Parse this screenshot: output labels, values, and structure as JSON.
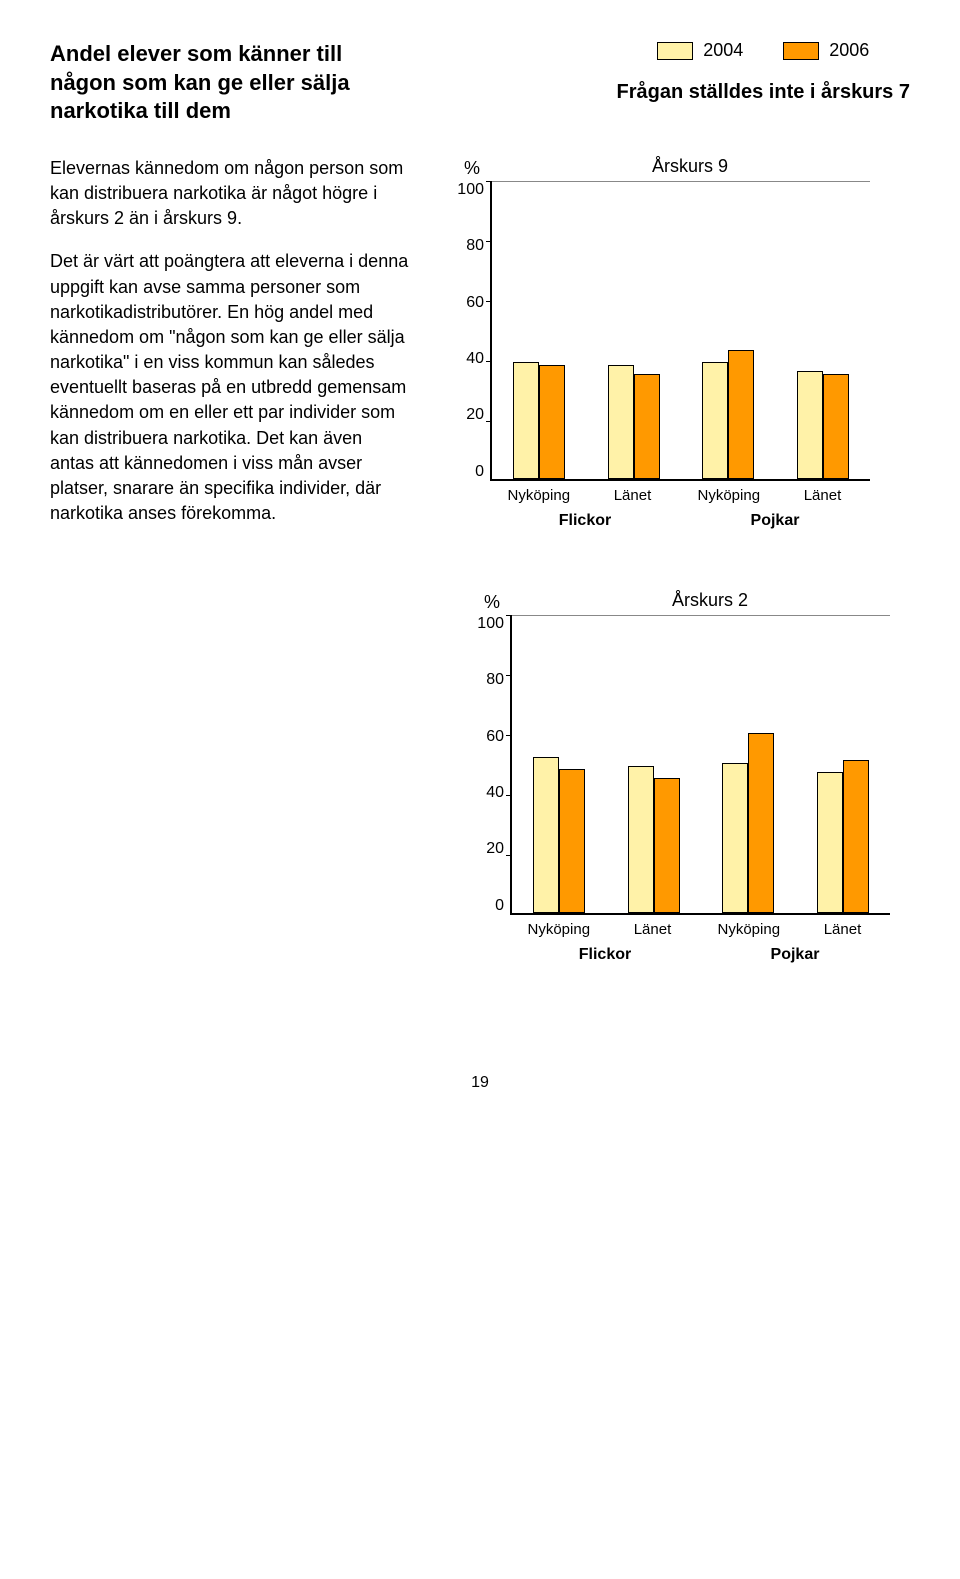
{
  "title": "Andel elever som känner till någon som kan ge eller sälja narkotika till dem",
  "legend": {
    "items": [
      {
        "label": "2004",
        "color": "#fff2a8"
      },
      {
        "label": "2006",
        "color": "#ff9900"
      }
    ]
  },
  "subtitle": "Frågan ställdes inte i årskurs 7",
  "body": {
    "p1": "Elevernas kännedom om någon person som kan distribuera narkotika är något högre i årskurs 2 än i årskurs 9.",
    "p2": "Det är värt att poängtera att eleverna i denna uppgift kan avse samma personer som narkotikadistributörer. En hög andel med kännedom om \"någon som kan ge eller sälja narkotika\" i en viss kommun kan således eventuellt baseras på en utbredd gemensam kännedom om en eller ett par individer som kan distribuera narkotika. Det kan även antas att kännedomen i viss mån avser platser, snarare än specifika individer, där narkotika anses förekomma."
  },
  "charts": [
    {
      "title": "Årskurs 9",
      "pct_symbol": "%",
      "ylim": [
        0,
        100
      ],
      "ytick_step": 20,
      "yticks": [
        "100",
        "80",
        "60",
        "40",
        "20",
        "0"
      ],
      "bar_colors": [
        "#fff2a8",
        "#ff9900"
      ],
      "border_color": "#000000",
      "background": "#ffffff",
      "groups": [
        {
          "label": "Nyköping",
          "values": [
            39,
            38
          ]
        },
        {
          "label": "Länet",
          "values": [
            38,
            35
          ]
        },
        {
          "label": "Nyköping",
          "values": [
            39,
            43
          ]
        },
        {
          "label": "Länet",
          "values": [
            36,
            35
          ]
        }
      ],
      "sub_labels": [
        "Flickor",
        "Pojkar"
      ]
    },
    {
      "title": "Årskurs 2",
      "pct_symbol": "%",
      "ylim": [
        0,
        100
      ],
      "ytick_step": 20,
      "yticks": [
        "100",
        "80",
        "60",
        "40",
        "20",
        "0"
      ],
      "bar_colors": [
        "#fff2a8",
        "#ff9900"
      ],
      "border_color": "#000000",
      "background": "#ffffff",
      "groups": [
        {
          "label": "Nyköping",
          "values": [
            52,
            48
          ]
        },
        {
          "label": "Länet",
          "values": [
            49,
            45
          ]
        },
        {
          "label": "Nyköping",
          "values": [
            50,
            60
          ]
        },
        {
          "label": "Länet",
          "values": [
            47,
            51
          ]
        }
      ],
      "sub_labels": [
        "Flickor",
        "Pojkar"
      ]
    }
  ],
  "page_number": "19"
}
